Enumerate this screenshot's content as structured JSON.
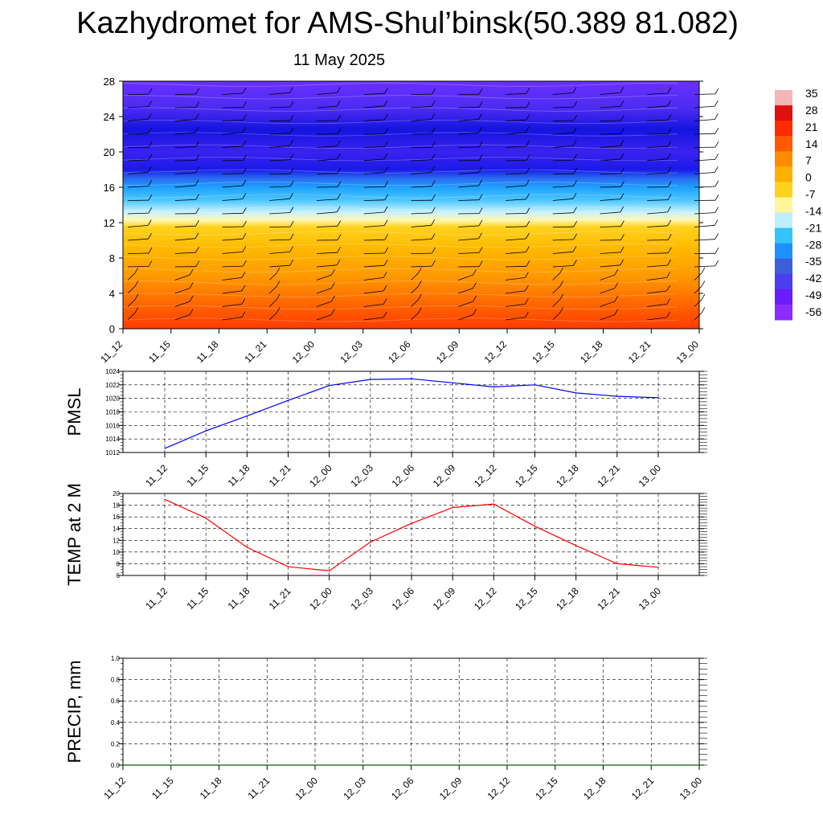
{
  "title": "Kazhydromet for AMS-Shul’binsk(50.389 81.082)",
  "subtitle": "11 May 2025",
  "time_labels": [
    "11_12",
    "11_15",
    "11_18",
    "11_21",
    "12_00",
    "12_03",
    "12_06",
    "12_09",
    "12_12",
    "12_15",
    "12_18",
    "12_21",
    "13_00"
  ],
  "chart_data": [
    {
      "type": "heatmap",
      "title": "",
      "x": [
        "11_12",
        "11_15",
        "11_18",
        "11_21",
        "12_00",
        "12_03",
        "12_06",
        "12_09",
        "12_12",
        "12_15",
        "12_18",
        "12_21",
        "13_00"
      ],
      "yticks": [
        0,
        4,
        8,
        12,
        16,
        20,
        24,
        28
      ],
      "ylim": [
        0,
        28
      ],
      "colorbar": {
        "labels": [
          "35",
          "28",
          "21",
          "14",
          "7",
          "0",
          "-7",
          "-14",
          "-21",
          "-28",
          "-35",
          "-42",
          "-49",
          "-56"
        ],
        "colors": [
          "#f2b6b6",
          "#e01010",
          "#ff2a00",
          "#ff5a00",
          "#ff8c00",
          "#ffb000",
          "#ffd21e",
          "#fff59a",
          "#bfeeff",
          "#33c4ff",
          "#1e90ff",
          "#3a5fd9",
          "#4a3ef0",
          "#6a1cff",
          "#8a2bff"
        ]
      },
      "color_stops": [
        {
          "y": 0,
          "color": "#ff3a00"
        },
        {
          "y": 3,
          "color": "#ff6a00"
        },
        {
          "y": 6,
          "color": "#ff9a00"
        },
        {
          "y": 9,
          "color": "#ffb800"
        },
        {
          "y": 11.5,
          "color": "#ffd21e"
        },
        {
          "y": 12.3,
          "color": "#fff7b0"
        },
        {
          "y": 13.2,
          "color": "#c9f1ff"
        },
        {
          "y": 14.5,
          "color": "#4fc8ff"
        },
        {
          "y": 16,
          "color": "#1ea0ff"
        },
        {
          "y": 17,
          "color": "#2a6cf0"
        },
        {
          "y": 18,
          "color": "#1a1ae8"
        },
        {
          "y": 20,
          "color": "#3a22ee"
        },
        {
          "y": 22.5,
          "color": "#1414e0"
        },
        {
          "y": 25,
          "color": "#4d2cf2"
        },
        {
          "y": 28,
          "color": "#6a30ff"
        }
      ]
    },
    {
      "type": "line",
      "ylabel": "PMSL",
      "x": [
        "11_12",
        "11_15",
        "11_18",
        "11_21",
        "12_00",
        "12_03",
        "12_06",
        "12_09",
        "12_12",
        "12_15",
        "12_18",
        "12_21",
        "13_00"
      ],
      "yticks": [
        1012,
        1014,
        1016,
        1018,
        1020,
        1022,
        1024
      ],
      "ylim": [
        1012,
        1024
      ],
      "series": [
        {
          "color": "#0000ff",
          "values": [
            1012.6,
            1015.2,
            1017.4,
            1019.7,
            1021.9,
            1022.8,
            1022.9,
            1022.3,
            1021.7,
            1022.0,
            1020.8,
            1020.3,
            1020.1
          ]
        }
      ]
    },
    {
      "type": "line",
      "ylabel": "TEMP at 2 M",
      "x": [
        "11_12",
        "11_15",
        "11_18",
        "11_21",
        "12_00",
        "12_03",
        "12_06",
        "12_09",
        "12_12",
        "12_15",
        "12_18",
        "12_21",
        "13_00"
      ],
      "yticks": [
        6,
        8,
        10,
        12,
        14,
        16,
        18,
        20
      ],
      "ylim": [
        6,
        20
      ],
      "series": [
        {
          "color": "#ff0000",
          "values": [
            19.0,
            15.8,
            10.8,
            7.5,
            6.8,
            11.7,
            14.9,
            17.6,
            18.2,
            14.4,
            11.1,
            8.0,
            7.4
          ]
        }
      ]
    },
    {
      "type": "line",
      "ylabel": "PRECIP, mm",
      "x": [
        "11_12",
        "11_15",
        "11_18",
        "11_21",
        "12_00",
        "12_03",
        "12_06",
        "12_09",
        "12_12",
        "12_15",
        "12_18",
        "12_21",
        "13_00"
      ],
      "yticks": [
        "0.0",
        "0.2",
        "0.4",
        "0.6",
        "0.8",
        "1.0"
      ],
      "ylim": [
        0,
        1
      ],
      "series": [
        {
          "color": "#006400",
          "values": [
            0,
            0,
            0,
            0,
            0,
            0,
            0,
            0,
            0,
            0,
            0,
            0,
            0
          ]
        }
      ]
    }
  ]
}
